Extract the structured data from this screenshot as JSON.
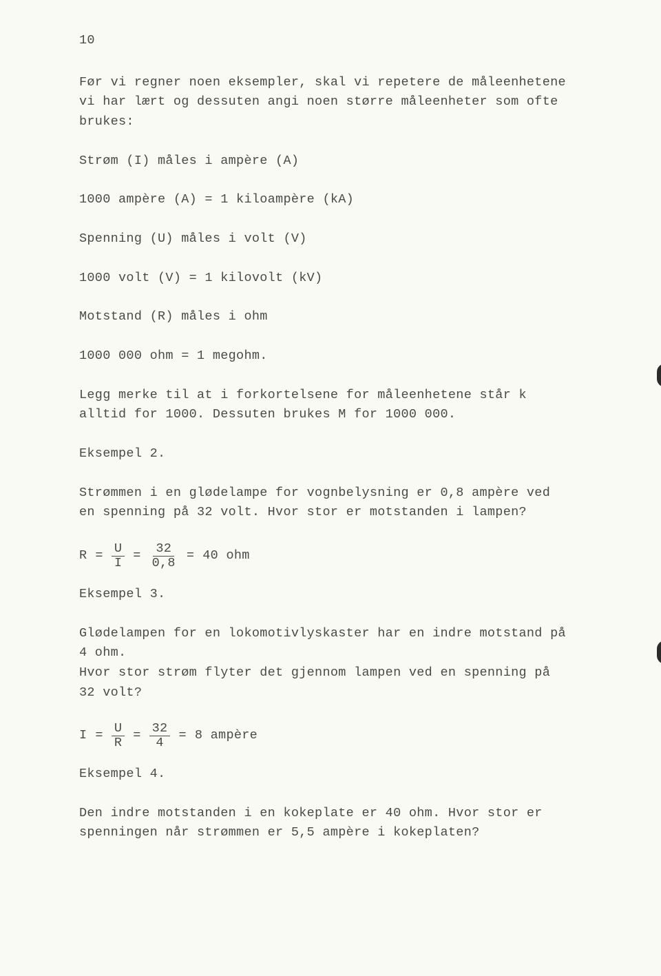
{
  "page": {
    "number": "10",
    "text_color": "#4a4a48",
    "background_color": "#fafaf5",
    "font_family": "Courier New",
    "font_size_pt": 14
  },
  "p1": {
    "l1": "Før vi regner noen eksempler, skal vi repetere de måleenhetene",
    "l2": "vi har lært og dessuten angi noen større måleenheter som ofte",
    "l3": "brukes:"
  },
  "p2": "Strøm (I) måles i ampère (A)",
  "p3": "1000 ampère (A) = 1 kiloampère (kA)",
  "p4": "Spenning (U) måles i volt (V)",
  "p5": "1000 volt (V) = 1 kilovolt (kV)",
  "p6": "Motstand (R) måles i ohm",
  "p7": "1000 000 ohm = 1 megohm.",
  "p8": {
    "l1": "Legg merke til at i forkortelsene for måleenhetene står k",
    "l2": "alltid for 1000. Dessuten brukes M for 1000 000."
  },
  "ex2": {
    "heading": "Eksempel 2.",
    "l1": "Strømmen i en glødelampe for vognbelysning er 0,8 ampère ved",
    "l2": "en spenning på 32 volt. Hvor stor er motstanden i lampen?",
    "formula": {
      "lhs": "R",
      "f1_num": "U",
      "f1_den": "I",
      "f2_num": "32",
      "f2_den": "0,8",
      "result": "40 ohm"
    }
  },
  "ex3": {
    "heading": "Eksempel 3.",
    "l1": "Glødelampen for en lokomotivlyskaster har en indre motstand på",
    "l2": "4 ohm.",
    "l3": "Hvor stor strøm flyter det gjennom lampen ved en spenning på",
    "l4": "32 volt?",
    "formula": {
      "lhs": "I",
      "f1_num": "U",
      "f1_den": "R",
      "f2_num": "32",
      "f2_den": "4",
      "result": "8 ampère"
    }
  },
  "ex4": {
    "heading": "Eksempel 4.",
    "l1": "Den indre motstanden i en kokeplate er 40 ohm. Hvor stor er",
    "l2": "spenningen når strømmen er 5,5 ampère i kokeplaten?"
  },
  "tabs": {
    "color": "#2b2b2b"
  }
}
